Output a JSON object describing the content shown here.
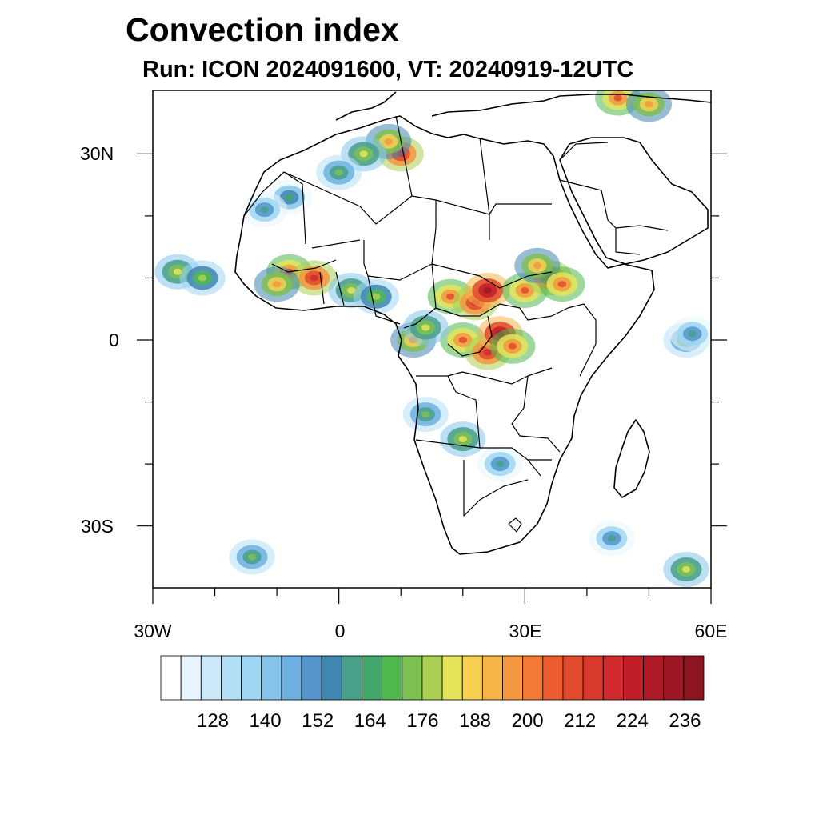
{
  "title": "Convection index",
  "subtitle": "Run: ICON 2024091600,  VT: 20240919-12UTC",
  "axes": {
    "lat_labels": [
      "30N",
      "0",
      "30S"
    ],
    "lon_labels": [
      "30W",
      "0",
      "30E",
      "60E"
    ],
    "lat_values": [
      30,
      0,
      -30
    ],
    "lon_values": [
      -30,
      0,
      30,
      60
    ],
    "lon_range": [
      -30,
      60
    ],
    "lat_range": [
      -40,
      40
    ]
  },
  "colorbar": {
    "labels": [
      "128",
      "140",
      "152",
      "164",
      "176",
      "188",
      "200",
      "212",
      "224",
      "236"
    ],
    "colors": [
      "#ffffff",
      "#e8f5fc",
      "#cbe9f8",
      "#b4e0f6",
      "#9ed6f3",
      "#86c4ea",
      "#6eb0e2",
      "#5595cc",
      "#3f87b0",
      "#48a088",
      "#43a66a",
      "#50b84c",
      "#7fc052",
      "#acd052",
      "#e4e55a",
      "#f6d050",
      "#f7b548",
      "#f59840",
      "#f27a36",
      "#ec5c2e",
      "#e24a2c",
      "#d93a2e",
      "#cf2a2e",
      "#c01f2a",
      "#ae1a28",
      "#9c1824",
      "#8c1620"
    ]
  },
  "chart_data": {
    "type": "heatmap",
    "title": "Convection index",
    "subtitle": "Run: ICON 2024091600,  VT: 20240919-12UTC",
    "model": "ICON",
    "run": "2024091600",
    "valid_time": "20240919-12UTC",
    "xlim": [
      -30,
      60
    ],
    "ylim": [
      -40,
      40
    ],
    "colorbar_ticks": [
      128,
      140,
      152,
      164,
      176,
      188,
      200,
      212,
      224,
      236
    ],
    "cells": [
      {
        "lon": -8,
        "lat": 11,
        "v": 200
      },
      {
        "lon": -4,
        "lat": 10,
        "v": 212
      },
      {
        "lon": -10,
        "lat": 9,
        "v": 188
      },
      {
        "lon": 2,
        "lat": 8,
        "v": 176
      },
      {
        "lon": 6,
        "lat": 7,
        "v": 170
      },
      {
        "lon": 18,
        "lat": 7,
        "v": 200
      },
      {
        "lon": 22,
        "lat": 6,
        "v": 212
      },
      {
        "lon": 24,
        "lat": 8,
        "v": 224
      },
      {
        "lon": 30,
        "lat": 8,
        "v": 200
      },
      {
        "lon": 34,
        "lat": 10,
        "v": 212
      },
      {
        "lon": 32,
        "lat": 12,
        "v": 188
      },
      {
        "lon": 36,
        "lat": 9,
        "v": 200
      },
      {
        "lon": 20,
        "lat": 0,
        "v": 200
      },
      {
        "lon": 24,
        "lat": -2,
        "v": 212
      },
      {
        "lon": 26,
        "lat": 1,
        "v": 224
      },
      {
        "lon": 28,
        "lat": -1,
        "v": 200
      },
      {
        "lon": 12,
        "lat": 0,
        "v": 188
      },
      {
        "lon": 14,
        "lat": 2,
        "v": 176
      },
      {
        "lon": 10,
        "lat": 30,
        "v": 212
      },
      {
        "lon": 8,
        "lat": 32,
        "v": 188
      },
      {
        "lon": 4,
        "lat": 30,
        "v": 176
      },
      {
        "lon": 0,
        "lat": 27,
        "v": 164
      },
      {
        "lon": -8,
        "lat": 23,
        "v": 158
      },
      {
        "lon": -12,
        "lat": 21,
        "v": 152
      },
      {
        "lon": -26,
        "lat": 11,
        "v": 176
      },
      {
        "lon": -22,
        "lat": 10,
        "v": 170
      },
      {
        "lon": 56,
        "lat": 0,
        "v": 164
      },
      {
        "lon": 57,
        "lat": 1,
        "v": 152
      },
      {
        "lon": 45,
        "lat": 39,
        "v": 200
      },
      {
        "lon": 50,
        "lat": 38,
        "v": 188
      },
      {
        "lon": 56,
        "lat": -37,
        "v": 176
      },
      {
        "lon": -14,
        "lat": -35,
        "v": 164
      },
      {
        "lon": 14,
        "lat": -12,
        "v": 164
      },
      {
        "lon": 20,
        "lat": -16,
        "v": 176
      },
      {
        "lon": 26,
        "lat": -20,
        "v": 152
      },
      {
        "lon": 44,
        "lat": -32,
        "v": 152
      }
    ]
  }
}
